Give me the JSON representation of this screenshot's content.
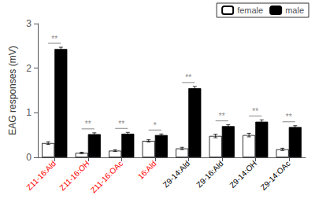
{
  "chart_data": {
    "type": "bar",
    "categories": [
      "Z11-16:Ald",
      "Z11-16:OH",
      "Z11-16:OAc",
      "16:Ald",
      "Z9-14:Ald",
      "Z9-16:Ald",
      "Z9-14:OH",
      "Z9-14:OAc"
    ],
    "category_colors": [
      "red",
      "red",
      "red",
      "red",
      "black",
      "black",
      "black",
      "black"
    ],
    "series": [
      {
        "name": "female",
        "color": "white",
        "values": [
          0.32,
          0.1,
          0.15,
          0.37,
          0.2,
          0.48,
          0.5,
          0.18
        ],
        "errors": [
          0.03,
          0.015,
          0.02,
          0.025,
          0.025,
          0.04,
          0.04,
          0.025
        ]
      },
      {
        "name": "male",
        "color": "black",
        "values": [
          2.43,
          0.52,
          0.53,
          0.5,
          1.55,
          0.7,
          0.8,
          0.68
        ],
        "errors": [
          0.04,
          0.03,
          0.03,
          0.025,
          0.04,
          0.03,
          0.04,
          0.03
        ]
      }
    ],
    "annotations": [
      {
        "category": "Z11-16:Ald",
        "text": "**",
        "color": "#888888"
      },
      {
        "category": "Z11-16:OH",
        "text": "**",
        "color": "#888888"
      },
      {
        "category": "Z11-16:OAc",
        "text": "**",
        "color": "#888888"
      },
      {
        "category": "16:Ald",
        "text": "*",
        "color": "#888888"
      },
      {
        "category": "Z9-14:Ald",
        "text": "**",
        "color": "#888888"
      },
      {
        "category": "Z9-16:Ald",
        "text": "**",
        "color": "#888888"
      },
      {
        "category": "Z9-14:OH",
        "text": "**",
        "color": "#888888"
      },
      {
        "category": "Z9-14:OAc",
        "text": "**",
        "color": "#888888"
      }
    ],
    "ylabel": "EAG responses (mV)",
    "ylim": [
      0,
      3.0
    ],
    "yticks": [
      0,
      1,
      2,
      3
    ],
    "grid": false,
    "legend": "upper right"
  }
}
